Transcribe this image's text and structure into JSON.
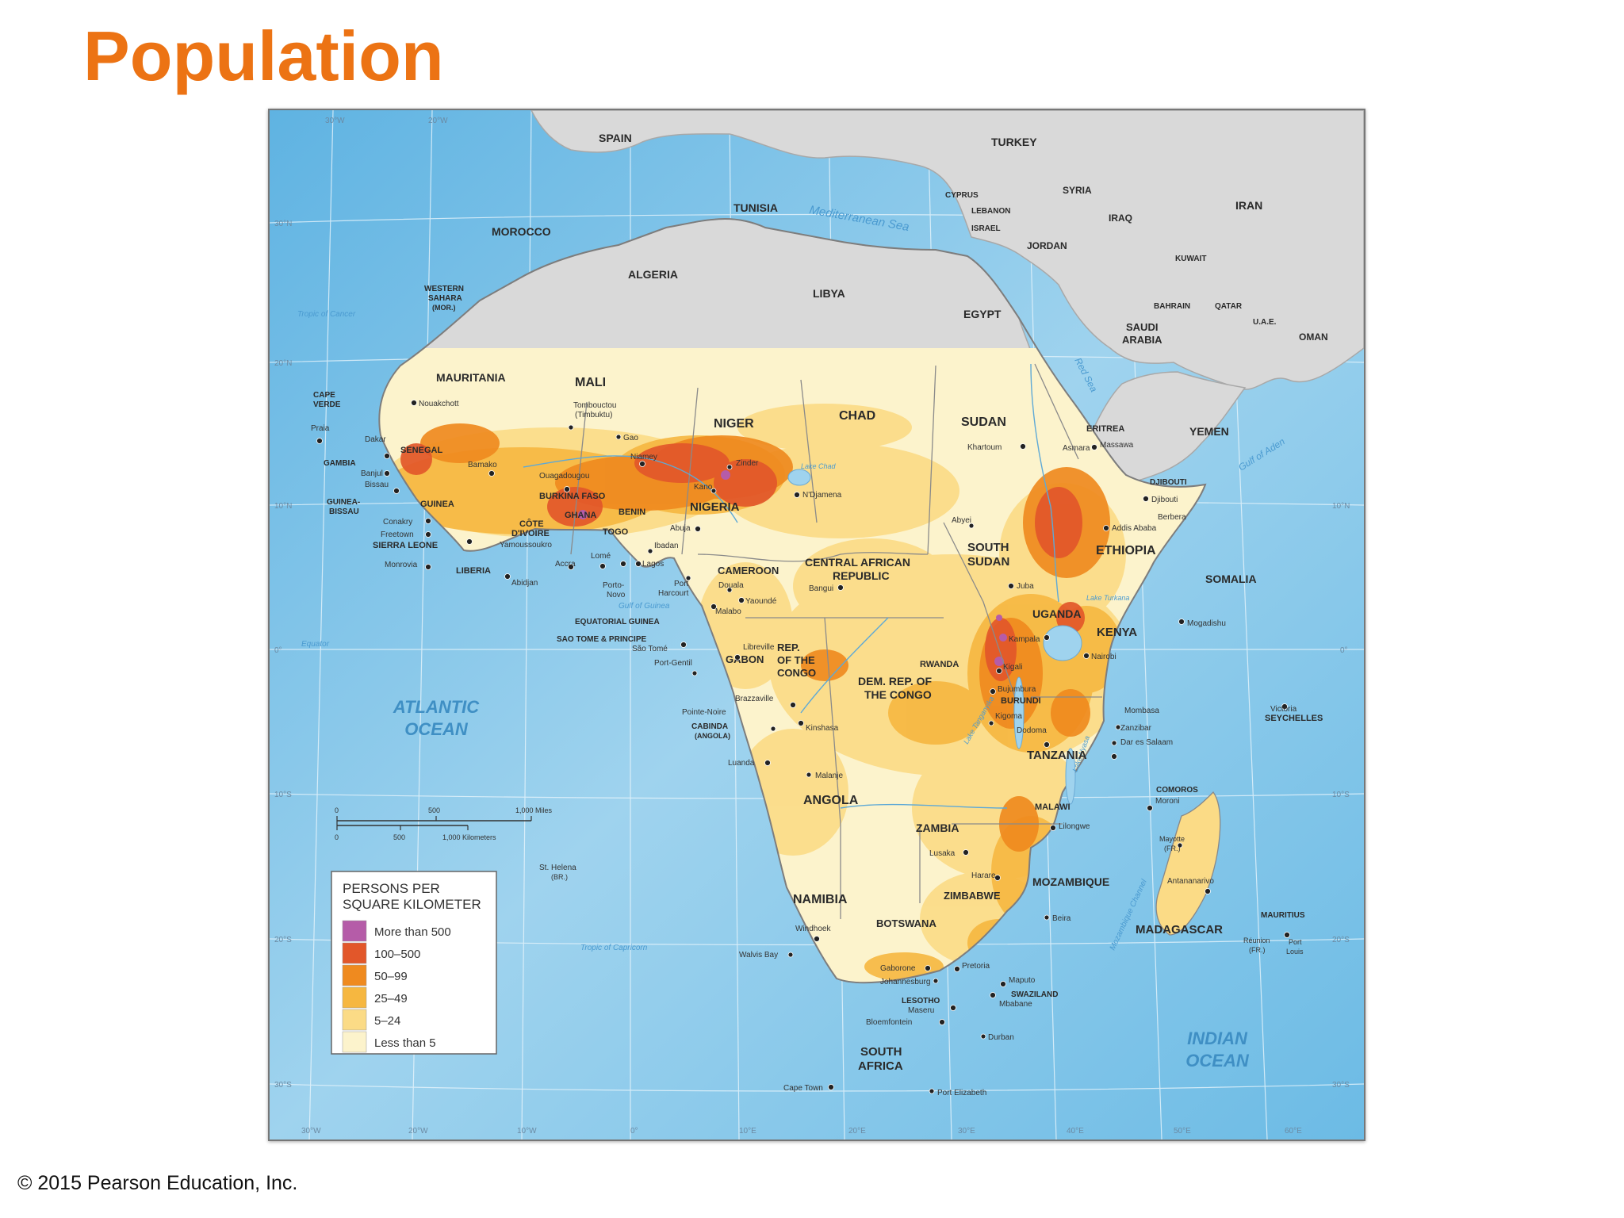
{
  "title": "Population",
  "footer": "© 2015 Pearson Education, Inc.",
  "colors": {
    "title": "#ec7314",
    "ocean": "#9fd3ee",
    "other_land": "#d9d9d9",
    "dens_gt500": "#b55ca8",
    "dens_100_500": "#e2572a",
    "dens_50_99": "#ef8a1f",
    "dens_25_49": "#f6b740",
    "dens_5_24": "#fbdb86",
    "dens_lt5": "#fcf3cc"
  },
  "legend": {
    "title_line1": "PERSONS PER",
    "title_line2": "SQUARE KILOMETER",
    "items": [
      {
        "label": "More than 500",
        "color": "#b55ca8"
      },
      {
        "label": "100–500",
        "color": "#e2572a"
      },
      {
        "label": "50–99",
        "color": "#ef8a1f"
      },
      {
        "label": "25–49",
        "color": "#f6b740"
      },
      {
        "label": "5–24",
        "color": "#fbdb86"
      },
      {
        "label": "Less than 5",
        "color": "#fcf3cc"
      }
    ]
  },
  "scale": {
    "miles": [
      "0",
      "500",
      "1,000 Miles"
    ],
    "km": [
      "0",
      "500",
      "1,000 Kilometers"
    ]
  },
  "oceans": [
    {
      "line1": "ATLANTIC",
      "line2": "OCEAN"
    },
    {
      "line1": "INDIAN",
      "line2": "OCEAN"
    }
  ],
  "water": {
    "mediterranean": "Mediterranean Sea",
    "red_sea": "Red Sea",
    "gulf_aden": "Gulf of Aden",
    "gulf_guinea": "Gulf of Guinea",
    "lake_chad": "Lake Chad",
    "lake_turkana": "Lake Turkana",
    "lake_tanganyika": "Lake Tanganyika",
    "lake_nyasa": "Lake Nyasa",
    "mozambique_channel": "Mozambique Channel",
    "tropic_cancer": "Tropic of Cancer",
    "tropic_capricorn": "Tropic of Capricorn",
    "equator": "Equator",
    "st_helena": "St. Helena",
    "st_helena_br": "(BR.)"
  },
  "countries": {
    "spain": "SPAIN",
    "turkey": "TURKEY",
    "tunisia": "TUNISIA",
    "morocco": "MOROCCO",
    "algeria": "ALGERIA",
    "libya": "LIBYA",
    "egypt": "EGYPT",
    "syria": "SYRIA",
    "cyprus": "CYPRUS",
    "lebanon": "LEBANON",
    "israel": "ISRAEL",
    "jordan": "JORDAN",
    "iraq": "IRAQ",
    "iran": "IRAN",
    "kuwait": "KUWAIT",
    "bahrain": "BAHRAIN",
    "qatar": "QATAR",
    "uae": "U.A.E.",
    "saudi1": "SAUDI",
    "saudi2": "ARABIA",
    "oman": "OMAN",
    "yemen": "YEMEN",
    "western1": "WESTERN",
    "western2": "SAHARA",
    "western3": "(MOR.)",
    "mauritania": "MAURITANIA",
    "mali": "MALI",
    "niger": "NIGER",
    "chad": "CHAD",
    "sudan": "SUDAN",
    "eritrea": "ERITREA",
    "djibouti": "DJIBOUTI",
    "cape1": "CAPE",
    "cape2": "VERDE",
    "senegal": "SENEGAL",
    "gambia": "GAMBIA",
    "guineabissau1": "GUINEA-",
    "guineabissau2": "BISSAU",
    "guinea": "GUINEA",
    "burkina": "BURKINA FASO",
    "benin": "BENIN",
    "nigeria": "NIGERIA",
    "ghana": "GHANA",
    "togo": "TOGO",
    "cote1": "CÔTE",
    "cote2": "D'IVOIRE",
    "sierra": "SIERRA LEONE",
    "liberia": "LIBERIA",
    "ethiopia": "ETHIOPIA",
    "somalia": "SOMALIA",
    "southsudan1": "SOUTH",
    "southsudan2": "SUDAN",
    "car1": "CENTRAL AFRICAN",
    "car2": "REPUBLIC",
    "cameroon": "CAMEROON",
    "eqguinea": "EQUATORIAL GUINEA",
    "saotome": "SAO TOME & PRINCIPE",
    "gabon": "GABON",
    "congo1": "REP.",
    "congo2": "OF THE",
    "congo3": "CONGO",
    "uganda": "UGANDA",
    "kenya": "KENYA",
    "rwanda": "RWANDA",
    "burundi": "BURUNDI",
    "drc1": "DEM. REP. OF",
    "drc2": "THE CONGO",
    "cabinda1": "CABINDA",
    "cabinda2": "(ANGOLA)",
    "tanzania": "TANZANIA",
    "seychelles": "SEYCHELLES",
    "comoros": "COMOROS",
    "angola": "ANGOLA",
    "malawi": "MALAWI",
    "zambia": "ZAMBIA",
    "mozambique": "MOZAMBIQUE",
    "zimbabwe": "ZIMBABWE",
    "namibia": "NAMIBIA",
    "botswana": "BOTSWANA",
    "madagascar": "MADAGASCAR",
    "mauritius": "MAURITIUS",
    "swaziland": "SWAZILAND",
    "lesotho": "LESOTHO",
    "southafrica1": "SOUTH",
    "southafrica2": "AFRICA"
  },
  "cities": {
    "nouakchott": "Nouakchott",
    "tombouctou1": "Tombouctou",
    "tombouctou2": "(Timbuktu)",
    "gao": "Gao",
    "praia": "Praia",
    "dakar": "Dakar",
    "banjul": "Banjul",
    "bissau": "Bissau",
    "bamako": "Bamako",
    "ouagadougou": "Ouagadougou",
    "niamey": "Niamey",
    "zinder": "Zinder",
    "kano": "Kano",
    "ndjamena": "N'Djamena",
    "khartoum": "Khartoum",
    "asmara": "Asmara",
    "massawa": "Massawa",
    "djiboutic": "Djibouti",
    "berbera": "Berbera",
    "addis": "Addis Ababa",
    "conakry": "Conakry",
    "freetown": "Freetown",
    "yamoussoukro": "Yamoussoukro",
    "monrovia": "Monrovia",
    "abidjan": "Abidjan",
    "accra": "Accra",
    "lome": "Lomé",
    "abuja": "Abuja",
    "ibadan": "Ibadan",
    "lagos": "Lagos",
    "portonovo1": "Porto-",
    "portonovo2": "Novo",
    "porth1": "Port",
    "porth2": "Harcourt",
    "douala": "Douala",
    "malabo": "Malabo",
    "yaounde": "Yaoundé",
    "bangui": "Bangui",
    "abyei": "Abyei",
    "juba": "Juba",
    "mogadishu": "Mogadishu",
    "kampala": "Kampala",
    "nairobi": "Nairobi",
    "kigali": "Kigali",
    "bujumbura": "Bujumbura",
    "kigoma": "Kigoma",
    "dodoma": "Dodoma",
    "mombasa": "Mombasa",
    "zanzibar": "Zanzibar",
    "daressalaam": "Dar es Salaam",
    "victoria": "Victoria",
    "moroni": "Moroni",
    "mayotte1": "Mayotte",
    "mayotte2": "(FR.)",
    "libreville": "Libreville",
    "saotomec": "São Tomé",
    "portgentil": "Port-Gentil",
    "brazzaville": "Brazzaville",
    "pointenoire": "Pointe-Noire",
    "kinshasa": "Kinshasa",
    "luanda": "Luanda",
    "malanje": "Malanje",
    "lilongwe": "Lilongwe",
    "lusaka": "Lusaka",
    "harare": "Harare",
    "beira": "Beira",
    "antananarivo": "Antananarivo",
    "windhoek": "Windhoek",
    "walvis": "Walvis Bay",
    "gaborone": "Gaborone",
    "pretoria": "Pretoria",
    "johannesburg": "Johannesburg",
    "maputo": "Maputo",
    "mbabane": "Mbabane",
    "maseru": "Maseru",
    "bloemfontein": "Bloemfontein",
    "durban": "Durban",
    "capetown": "Cape Town",
    "portelizabeth": "Port Elizabeth",
    "reunion1": "Réunion",
    "reunion2": "(FR.)",
    "portlouis1": "Port",
    "portlouis2": "Louis"
  },
  "graticule": {
    "top": [
      "30°W",
      "20°W"
    ],
    "bottom": [
      "30°W",
      "20°W",
      "10°W",
      "0°",
      "10°E",
      "20°E",
      "30°E",
      "40°E",
      "50°E",
      "60°E"
    ],
    "left": [
      "30°N",
      "20°N",
      "10°N",
      "0°",
      "10°S",
      "20°S",
      "30°S"
    ],
    "right": [
      "10°N",
      "0°",
      "10°S",
      "20°S",
      "30°S"
    ]
  }
}
